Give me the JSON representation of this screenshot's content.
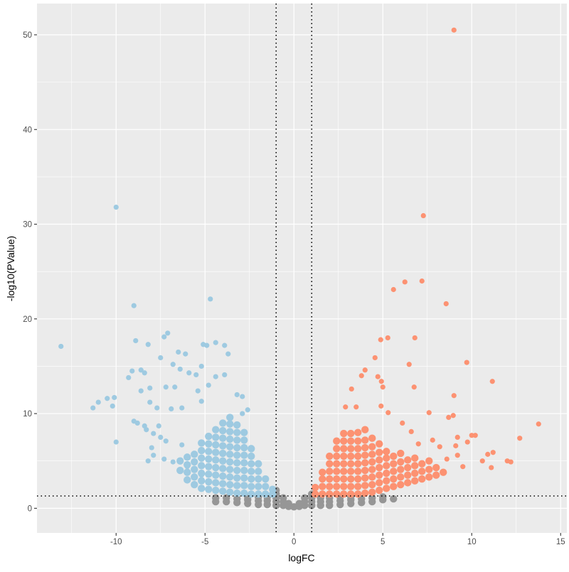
{
  "chart_data": {
    "type": "scatter",
    "title": "",
    "xlabel": "logFC",
    "ylabel": "-log10(PValue)",
    "xlim": [
      -14.45,
      15.35
    ],
    "ylim": [
      -2.6,
      53.3
    ],
    "x_ticks": [
      -10,
      -5,
      0,
      5,
      10,
      15
    ],
    "y_ticks": [
      0,
      10,
      20,
      30,
      40,
      50
    ],
    "x_tick_labels": [
      "-10",
      "-5",
      "0",
      "5",
      "10",
      "15"
    ],
    "y_tick_labels": [
      "0",
      "10",
      "20",
      "30",
      "40",
      "50"
    ],
    "grid": true,
    "legend": "none",
    "background": "#EBEBEB",
    "thresholds": {
      "logFC": [
        -1,
        1
      ],
      "neg_log10_p": 1.301,
      "style": "dotted"
    },
    "colors": {
      "down": "#9ECAE1",
      "up": "#FC9272",
      "ns": "#969696"
    },
    "groups": [
      {
        "group": "ns",
        "columns": [
          {
            "x": -4.4,
            "y": [
              0.7,
              1.1
            ]
          },
          {
            "x": -3.8,
            "y": [
              0.7,
              1.1
            ]
          },
          {
            "x": -3.2,
            "y": [
              0.6,
              1.0
            ]
          },
          {
            "x": -2.6,
            "y": [
              0.5,
              0.9,
              1.2
            ]
          },
          {
            "x": -2.0,
            "y": [
              0.4,
              0.8,
              1.2
            ]
          },
          {
            "x": -1.5,
            "y": [
              0.4,
              0.8,
              1.2
            ]
          },
          {
            "x": -1.0,
            "y": [
              0.3,
              0.7,
              1.1,
              1.5,
              1.9
            ]
          },
          {
            "x": -0.6,
            "y": [
              0.3,
              0.7,
              1.1
            ]
          },
          {
            "x": -0.3,
            "y": [
              0.2,
              0.5
            ]
          },
          {
            "x": 0,
            "y": [
              0.15
            ]
          },
          {
            "x": 0.3,
            "y": [
              0.2,
              0.5
            ]
          },
          {
            "x": 0.6,
            "y": [
              0.3,
              0.7,
              1.1
            ]
          },
          {
            "x": 1.0,
            "y": [
              0.3,
              0.7,
              1.1,
              1.5
            ]
          },
          {
            "x": 1.5,
            "y": [
              0.3,
              0.7,
              1.1
            ]
          },
          {
            "x": 2.0,
            "y": [
              0.3,
              0.7,
              1.1
            ]
          },
          {
            "x": 2.6,
            "y": [
              0.4,
              0.8,
              1.2
            ]
          },
          {
            "x": 3.2,
            "y": [
              0.5,
              0.9,
              1.2
            ]
          },
          {
            "x": 3.8,
            "y": [
              0.6,
              1.0
            ]
          },
          {
            "x": 4.4,
            "y": [
              0.7,
              1.1
            ]
          },
          {
            "x": 5.0,
            "y": [
              0.9,
              1.2
            ]
          },
          {
            "x": 5.6,
            "y": [
              1.0
            ]
          }
        ],
        "points": []
      },
      {
        "group": "down",
        "columns": [
          {
            "x": -1.2,
            "y": [
              1.5,
              2.0
            ]
          },
          {
            "x": -1.6,
            "y": [
              1.5,
              2.3,
              3.1
            ]
          },
          {
            "x": -2.0,
            "y": [
              1.5,
              2.3,
              3.1,
              3.9,
              4.7
            ]
          },
          {
            "x": -2.4,
            "y": [
              1.5,
              2.3,
              3.1,
              3.9,
              4.7,
              5.5,
              6.3
            ]
          },
          {
            "x": -2.8,
            "y": [
              1.6,
              2.4,
              3.2,
              4.0,
              4.8,
              5.6,
              6.4,
              7.2,
              8.0
            ]
          },
          {
            "x": -3.2,
            "y": [
              1.6,
              2.4,
              3.2,
              4.0,
              4.8,
              5.6,
              6.4,
              7.2,
              8.0,
              8.8
            ]
          },
          {
            "x": -3.6,
            "y": [
              1.7,
              2.5,
              3.3,
              4.1,
              4.9,
              5.7,
              6.5,
              7.3,
              8.1,
              8.9,
              9.6
            ]
          },
          {
            "x": -4.0,
            "y": [
              1.8,
              2.6,
              3.4,
              4.2,
              5.0,
              5.8,
              6.6,
              7.4,
              8.2,
              9.0
            ]
          },
          {
            "x": -4.4,
            "y": [
              1.9,
              2.7,
              3.5,
              4.3,
              5.1,
              5.9,
              6.7,
              7.5,
              8.3
            ]
          },
          {
            "x": -4.8,
            "y": [
              2.0,
              2.8,
              3.6,
              4.4,
              5.2,
              6.0,
              6.8,
              7.6
            ]
          },
          {
            "x": -5.2,
            "y": [
              2.1,
              2.9,
              3.7,
              4.5,
              5.3,
              6.1,
              6.9
            ]
          },
          {
            "x": -5.6,
            "y": [
              2.5,
              3.3,
              4.1,
              4.9,
              5.7
            ]
          },
          {
            "x": -6.0,
            "y": [
              3.0,
              3.8,
              4.6,
              5.4
            ]
          },
          {
            "x": -6.4,
            "y": [
              4.0,
              5.0
            ]
          }
        ],
        "points": [
          [
            -13.1,
            17.1
          ],
          [
            -10,
            31.8
          ],
          [
            -9,
            21.4
          ],
          [
            -4.7,
            22.1
          ],
          [
            -7.1,
            18.5
          ],
          [
            -7.3,
            18.1
          ],
          [
            -8.9,
            17.7
          ],
          [
            -8.2,
            17.3
          ],
          [
            -5.1,
            17.3
          ],
          [
            -4.9,
            17.2
          ],
          [
            -4.4,
            17.5
          ],
          [
            -3.9,
            17.2
          ],
          [
            -3.7,
            16.3
          ],
          [
            -6.5,
            16.5
          ],
          [
            -6.1,
            16.3
          ],
          [
            -7.5,
            15.9
          ],
          [
            -9.1,
            14.5
          ],
          [
            -8.6,
            14.6
          ],
          [
            -8.4,
            14.3
          ],
          [
            -6.8,
            15.2
          ],
          [
            -6.4,
            14.7
          ],
          [
            -5.2,
            15
          ],
          [
            -5.5,
            14.1
          ],
          [
            -3.9,
            14.1
          ],
          [
            -5.9,
            14.3
          ],
          [
            -4.4,
            13.9
          ],
          [
            -4.8,
            13
          ],
          [
            -7.2,
            12.8
          ],
          [
            -8.1,
            12.7
          ],
          [
            -9.3,
            13.8
          ],
          [
            -8.6,
            12.4
          ],
          [
            -6.7,
            12.8
          ],
          [
            -5.4,
            12.4
          ],
          [
            -3.2,
            12
          ],
          [
            -2.9,
            11.8
          ],
          [
            -10.5,
            11.6
          ],
          [
            -10.1,
            11.7
          ],
          [
            -11,
            11.2
          ],
          [
            -11.3,
            10.6
          ],
          [
            -10.2,
            10.8
          ],
          [
            -8.1,
            11.2
          ],
          [
            -7.7,
            10.6
          ],
          [
            -6.9,
            10.5
          ],
          [
            -6.3,
            10.6
          ],
          [
            -5.2,
            11.3
          ],
          [
            -9,
            9.2
          ],
          [
            -8.8,
            9
          ],
          [
            -8.4,
            8.7
          ],
          [
            -7.6,
            8.7
          ],
          [
            -10,
            7
          ],
          [
            -8.3,
            8.3
          ],
          [
            -7.9,
            7.9
          ],
          [
            -7.5,
            7.5
          ],
          [
            -7.2,
            7.1
          ],
          [
            -6.3,
            6.7
          ],
          [
            -8,
            6.4
          ],
          [
            -7.9,
            5.6
          ],
          [
            -8.2,
            5
          ],
          [
            -7.3,
            5.2
          ],
          [
            -6.8,
            4.9
          ],
          [
            -6,
            4.4
          ],
          [
            -5.6,
            4.2
          ],
          [
            -5.2,
            3.5
          ],
          [
            -2.6,
            10.4
          ],
          [
            -2.9,
            10
          ]
        ]
      },
      {
        "group": "up",
        "columns": [
          {
            "x": 1.2,
            "y": [
              1.5,
              2.2
            ]
          },
          {
            "x": 1.6,
            "y": [
              1.5,
              2.3,
              3.1,
              3.8
            ]
          },
          {
            "x": 2.0,
            "y": [
              1.5,
              2.3,
              3.1,
              3.9,
              4.7,
              5.5
            ]
          },
          {
            "x": 2.4,
            "y": [
              1.5,
              2.3,
              3.1,
              3.9,
              4.7,
              5.5,
              6.3,
              7.1
            ]
          },
          {
            "x": 2.8,
            "y": [
              1.5,
              2.3,
              3.1,
              3.9,
              4.7,
              5.5,
              6.3,
              7.1,
              7.9
            ]
          },
          {
            "x": 3.2,
            "y": [
              1.5,
              2.3,
              3.1,
              3.9,
              4.7,
              5.5,
              6.3,
              7.1,
              7.9
            ]
          },
          {
            "x": 3.6,
            "y": [
              1.5,
              2.3,
              3.1,
              3.9,
              4.7,
              5.5,
              6.3,
              7.1,
              8.0
            ]
          },
          {
            "x": 4.0,
            "y": [
              1.6,
              2.4,
              3.2,
              4.0,
              4.8,
              5.6,
              6.4,
              7.2,
              8.3
            ]
          },
          {
            "x": 4.4,
            "y": [
              1.7,
              2.5,
              3.3,
              4.1,
              4.9,
              5.7,
              6.5,
              7.4
            ]
          },
          {
            "x": 4.8,
            "y": [
              1.9,
              2.7,
              3.5,
              4.3,
              5.1,
              5.9,
              6.8
            ]
          },
          {
            "x": 5.2,
            "y": [
              2.1,
              2.9,
              3.7,
              4.5,
              5.3,
              6.0
            ]
          },
          {
            "x": 5.6,
            "y": [
              2.3,
              3.1,
              3.9,
              4.7,
              5.5
            ]
          },
          {
            "x": 6.0,
            "y": [
              2.5,
              3.3,
              4.1,
              4.9,
              5.8
            ]
          },
          {
            "x": 6.4,
            "y": [
              2.7,
              3.5,
              4.3,
              5.1
            ]
          },
          {
            "x": 6.8,
            "y": [
              2.9,
              3.7,
              4.5,
              5.3
            ]
          },
          {
            "x": 7.2,
            "y": [
              3.1,
              3.9,
              4.7
            ]
          },
          {
            "x": 7.6,
            "y": [
              3.3,
              4.1,
              5.0
            ]
          },
          {
            "x": 8.0,
            "y": [
              3.5,
              4.3
            ]
          },
          {
            "x": 8.4,
            "y": [
              3.8
            ]
          }
        ],
        "points": [
          [
            9.0,
            50.5
          ],
          [
            7.28,
            30.9
          ],
          [
            5.6,
            23.1
          ],
          [
            6.24,
            23.9
          ],
          [
            7.2,
            24
          ],
          [
            8.56,
            21.6
          ],
          [
            5.28,
            18
          ],
          [
            4.88,
            17.8
          ],
          [
            6.8,
            18
          ],
          [
            9.72,
            15.4
          ],
          [
            11.16,
            13.4
          ],
          [
            13.76,
            8.9
          ],
          [
            6.48,
            15.2
          ],
          [
            4.56,
            15.9
          ],
          [
            4.0,
            14.6
          ],
          [
            3.8,
            14
          ],
          [
            3.24,
            12.6
          ],
          [
            4.72,
            13.9
          ],
          [
            4.92,
            13.4
          ],
          [
            5.0,
            12.8
          ],
          [
            6.76,
            12.8
          ],
          [
            9.0,
            11.9
          ],
          [
            12.7,
            7.4
          ],
          [
            10.0,
            7.7
          ],
          [
            10.2,
            7.7
          ],
          [
            9.76,
            7.0
          ],
          [
            10.6,
            5.0
          ],
          [
            10.9,
            5.7
          ],
          [
            11.2,
            5.9
          ],
          [
            11.1,
            4.3
          ],
          [
            12.0,
            5.0
          ],
          [
            12.2,
            4.9
          ],
          [
            9.2,
            7.5
          ],
          [
            8.96,
            9.8
          ],
          [
            8.7,
            9.6
          ],
          [
            7.6,
            10.1
          ],
          [
            6.1,
            9.0
          ],
          [
            4.9,
            10.8
          ],
          [
            2.9,
            10.7
          ],
          [
            3.5,
            10.7
          ],
          [
            5.3,
            10.1
          ],
          [
            9.2,
            5.6
          ],
          [
            9.5,
            4.4
          ],
          [
            9.1,
            6.6
          ],
          [
            8.2,
            6.5
          ],
          [
            7.8,
            7.2
          ],
          [
            8.6,
            5.2
          ],
          [
            7.0,
            6.8
          ],
          [
            6.6,
            8.1
          ]
        ]
      }
    ]
  }
}
